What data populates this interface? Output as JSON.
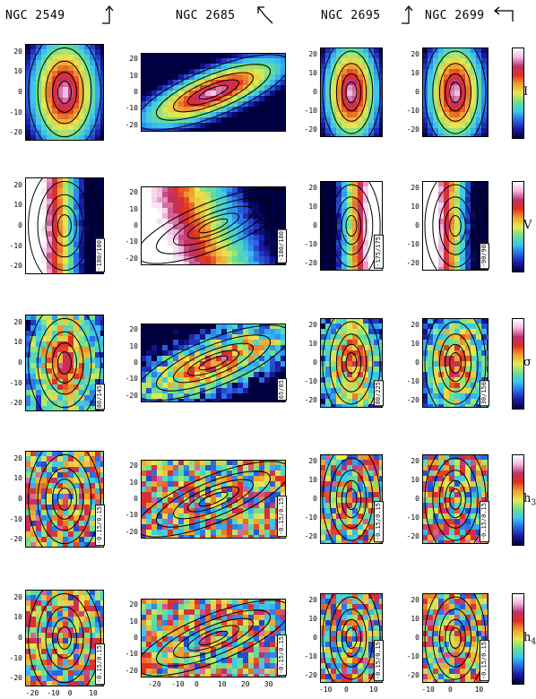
{
  "galaxies": [
    {
      "name": "NGC 2549",
      "arrow": "up-right"
    },
    {
      "name": "NGC 2685",
      "arrow": "up-left"
    },
    {
      "name": "NGC 2695",
      "arrow": "up-right"
    },
    {
      "name": "NGC 2699",
      "arrow": "left-down"
    }
  ],
  "rows": [
    {
      "quantity": "I",
      "sub": "",
      "ranges": [
        "",
        "",
        "",
        ""
      ]
    },
    {
      "quantity": "V",
      "sub": "",
      "ranges": [
        "-180/180",
        "-180/180",
        "-175/175",
        "-90/90"
      ]
    },
    {
      "quantity": "σ",
      "sub": "",
      "ranges": [
        "80/145",
        "65/85",
        "80/225",
        "30/150"
      ]
    },
    {
      "quantity": "h",
      "sub": "3",
      "ranges": [
        "-0.15/0.15",
        "-0.15/0.15",
        "-0.15/0.15",
        "-0.15/0.15"
      ]
    },
    {
      "quantity": "h",
      "sub": "4",
      "ranges": [
        "-0.15/0.15",
        "-0.15/0.15",
        "-0.15/0.15",
        "-0.15/0.15"
      ]
    }
  ],
  "axes": {
    "y_ticks": [
      "20",
      "10",
      "0",
      "-10",
      "-20"
    ],
    "x_ticks": [
      [
        "-20",
        "-10",
        "0",
        "10"
      ],
      [
        "-20",
        "-10",
        "0",
        "10",
        "20",
        "30"
      ],
      [
        "-10",
        "0",
        "10"
      ],
      [
        "-10",
        "0",
        "10"
      ]
    ]
  },
  "colors": {
    "scale": [
      "#000040",
      "#1a1aa0",
      "#2a6ae6",
      "#38c8f0",
      "#6ee08c",
      "#e8e850",
      "#f0a030",
      "#e03020",
      "#c0306a",
      "#f0b8e0",
      "#ffffff"
    ]
  }
}
